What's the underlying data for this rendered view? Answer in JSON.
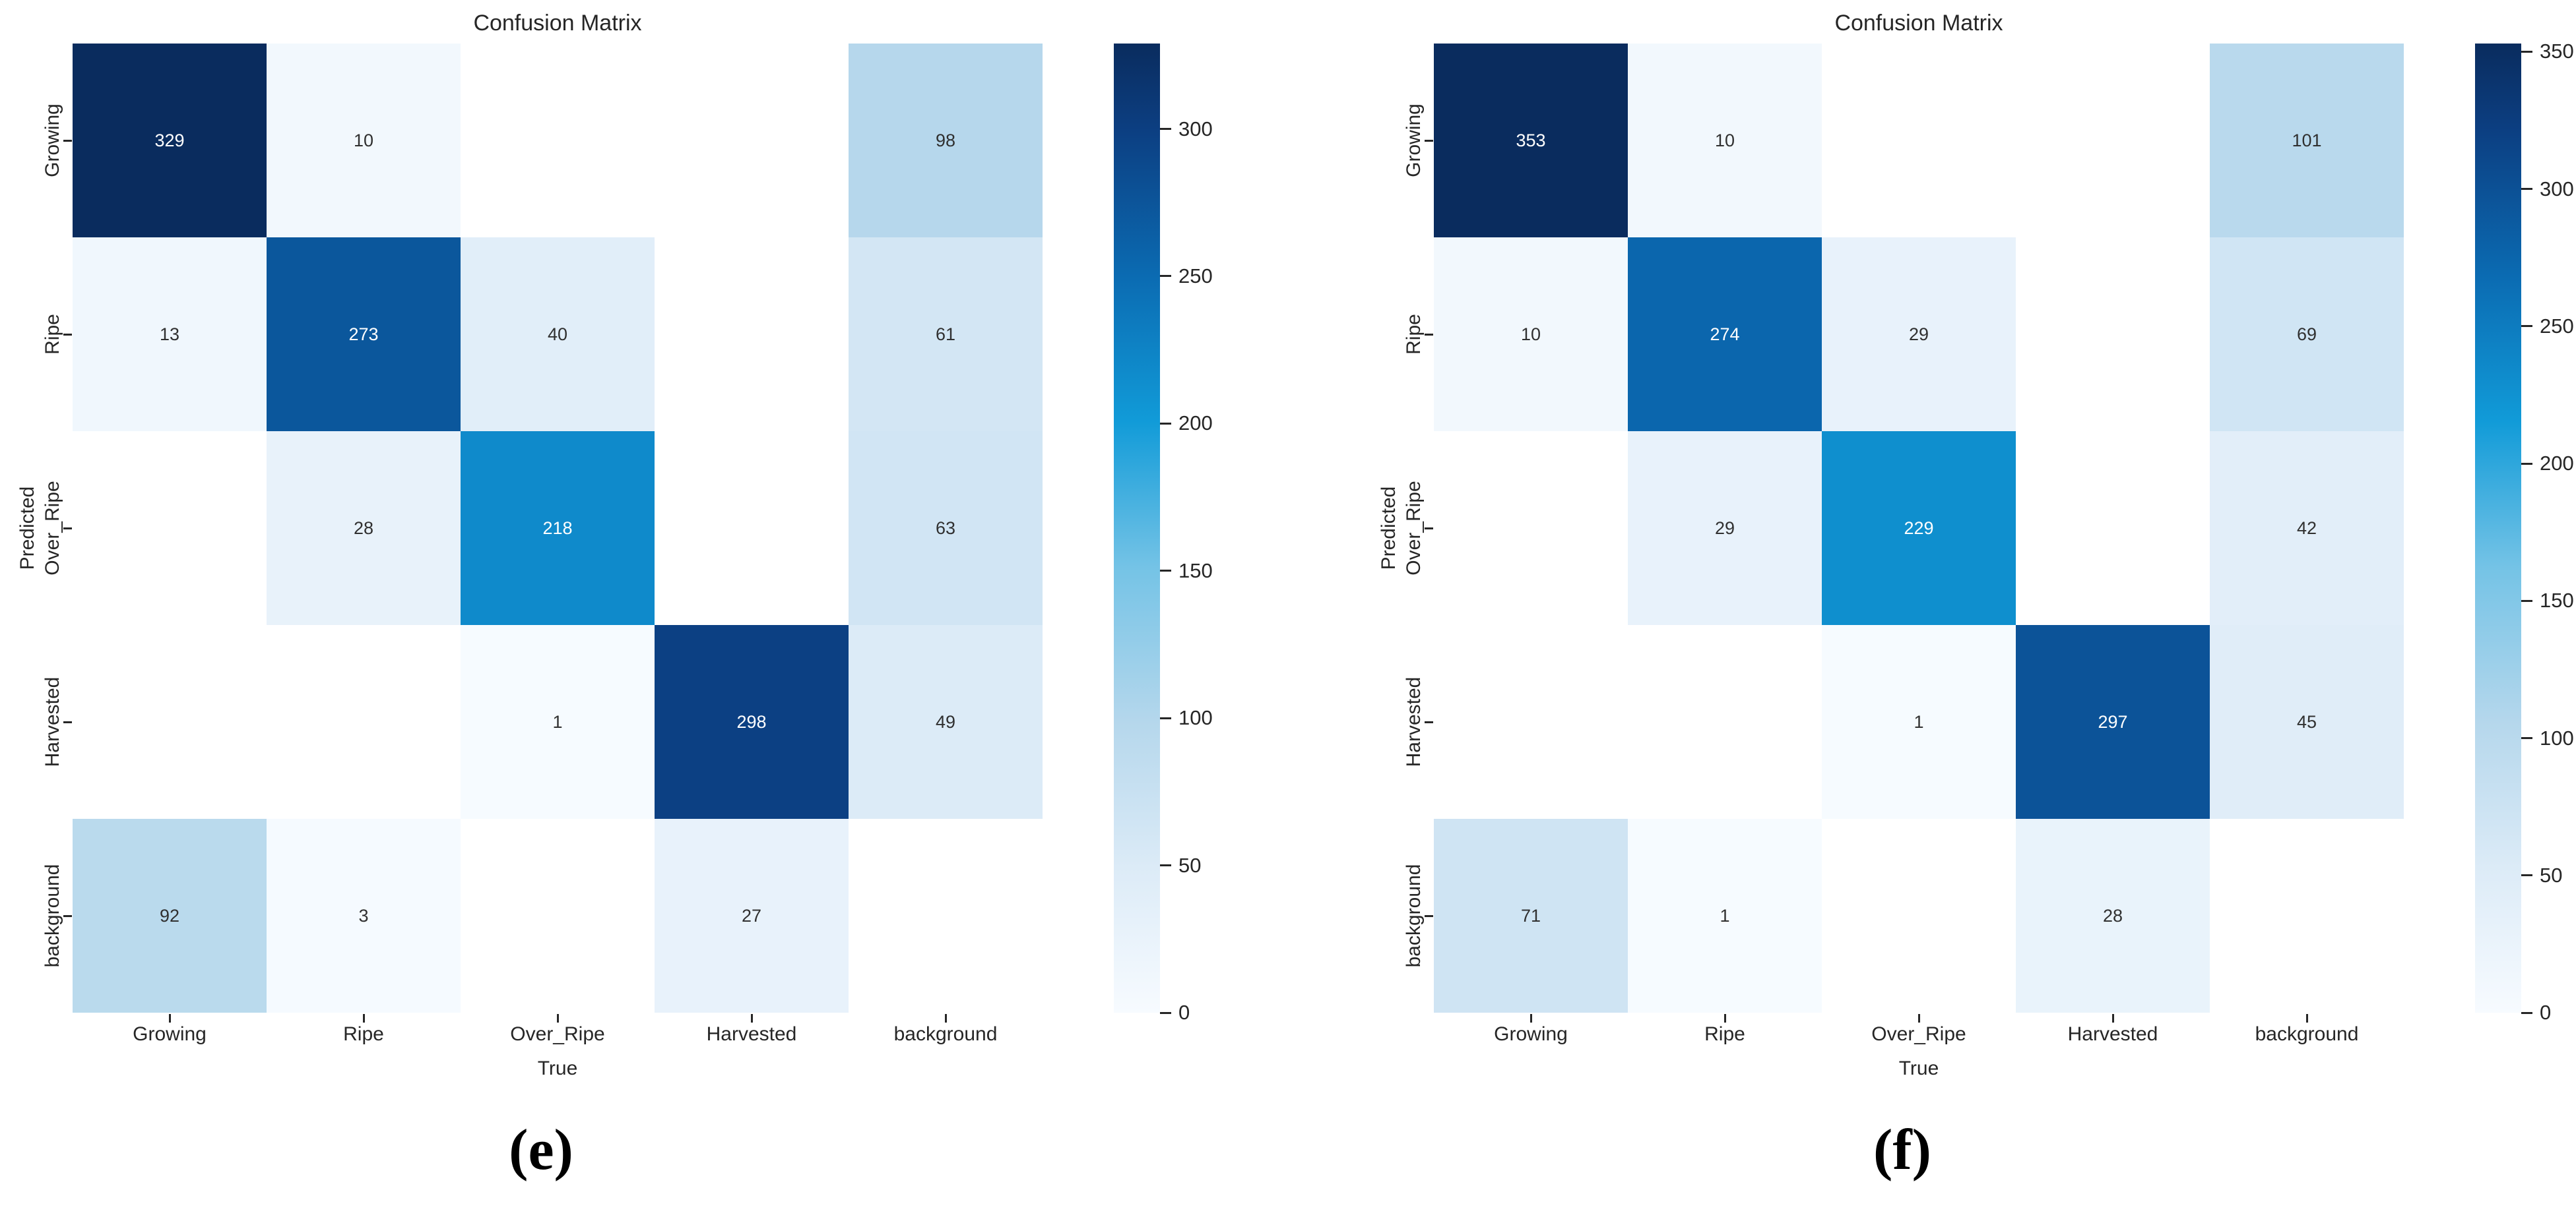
{
  "figure": {
    "background": "#ffffff"
  },
  "colormap": {
    "name": "blues-heatmap",
    "nan_color": "#ffffff",
    "annot_light_text": "#ffffff",
    "annot_dark_text": "#303030",
    "white_text_threshold": 0.5,
    "stops": [
      {
        "t": 0.0,
        "color": "#f7fbff"
      },
      {
        "t": 0.15,
        "color": "#dcebf7"
      },
      {
        "t": 0.3,
        "color": "#b5d7ec"
      },
      {
        "t": 0.46,
        "color": "#74c3e6"
      },
      {
        "t": 0.61,
        "color": "#119bd8"
      },
      {
        "t": 0.76,
        "color": "#0b6bb2"
      },
      {
        "t": 0.91,
        "color": "#0c3f82"
      },
      {
        "t": 1.0,
        "color": "#0a2c5e"
      }
    ]
  },
  "chart_data": [
    {
      "type": "heatmap",
      "title": "Confusion Matrix",
      "xlabel": "True",
      "ylabel": "Predicted",
      "caption": "(e)",
      "x_categories": [
        "Growing",
        "Ripe",
        "Over_Ripe",
        "Harvested",
        "background"
      ],
      "y_categories": [
        "Growing",
        "Ripe",
        "Over_Ripe",
        "Harvested",
        "background"
      ],
      "matrix": [
        [
          329,
          10,
          null,
          null,
          98
        ],
        [
          13,
          273,
          40,
          null,
          61
        ],
        [
          null,
          28,
          218,
          null,
          63
        ],
        [
          null,
          null,
          1,
          298,
          49
        ],
        [
          92,
          3,
          null,
          27,
          null
        ]
      ],
      "vmin": 0,
      "vmax": 329,
      "colorbar_ticks": [
        0,
        50,
        100,
        150,
        200,
        250,
        300
      ],
      "legend_position": "right",
      "grid": false
    },
    {
      "type": "heatmap",
      "title": "Confusion Matrix",
      "xlabel": "True",
      "ylabel": "Predicted",
      "caption": "(f)",
      "x_categories": [
        "Growing",
        "Ripe",
        "Over_Ripe",
        "Harvested",
        "background"
      ],
      "y_categories": [
        "Growing",
        "Ripe",
        "Over_Ripe",
        "Harvested",
        "background"
      ],
      "matrix": [
        [
          353,
          10,
          null,
          null,
          101
        ],
        [
          10,
          274,
          29,
          null,
          69
        ],
        [
          null,
          29,
          229,
          null,
          42
        ],
        [
          null,
          null,
          1,
          297,
          45
        ],
        [
          71,
          1,
          null,
          28,
          null
        ]
      ],
      "vmin": 0,
      "vmax": 353,
      "colorbar_ticks": [
        0,
        50,
        100,
        150,
        200,
        250,
        300,
        350
      ],
      "legend_position": "right",
      "grid": false
    }
  ]
}
